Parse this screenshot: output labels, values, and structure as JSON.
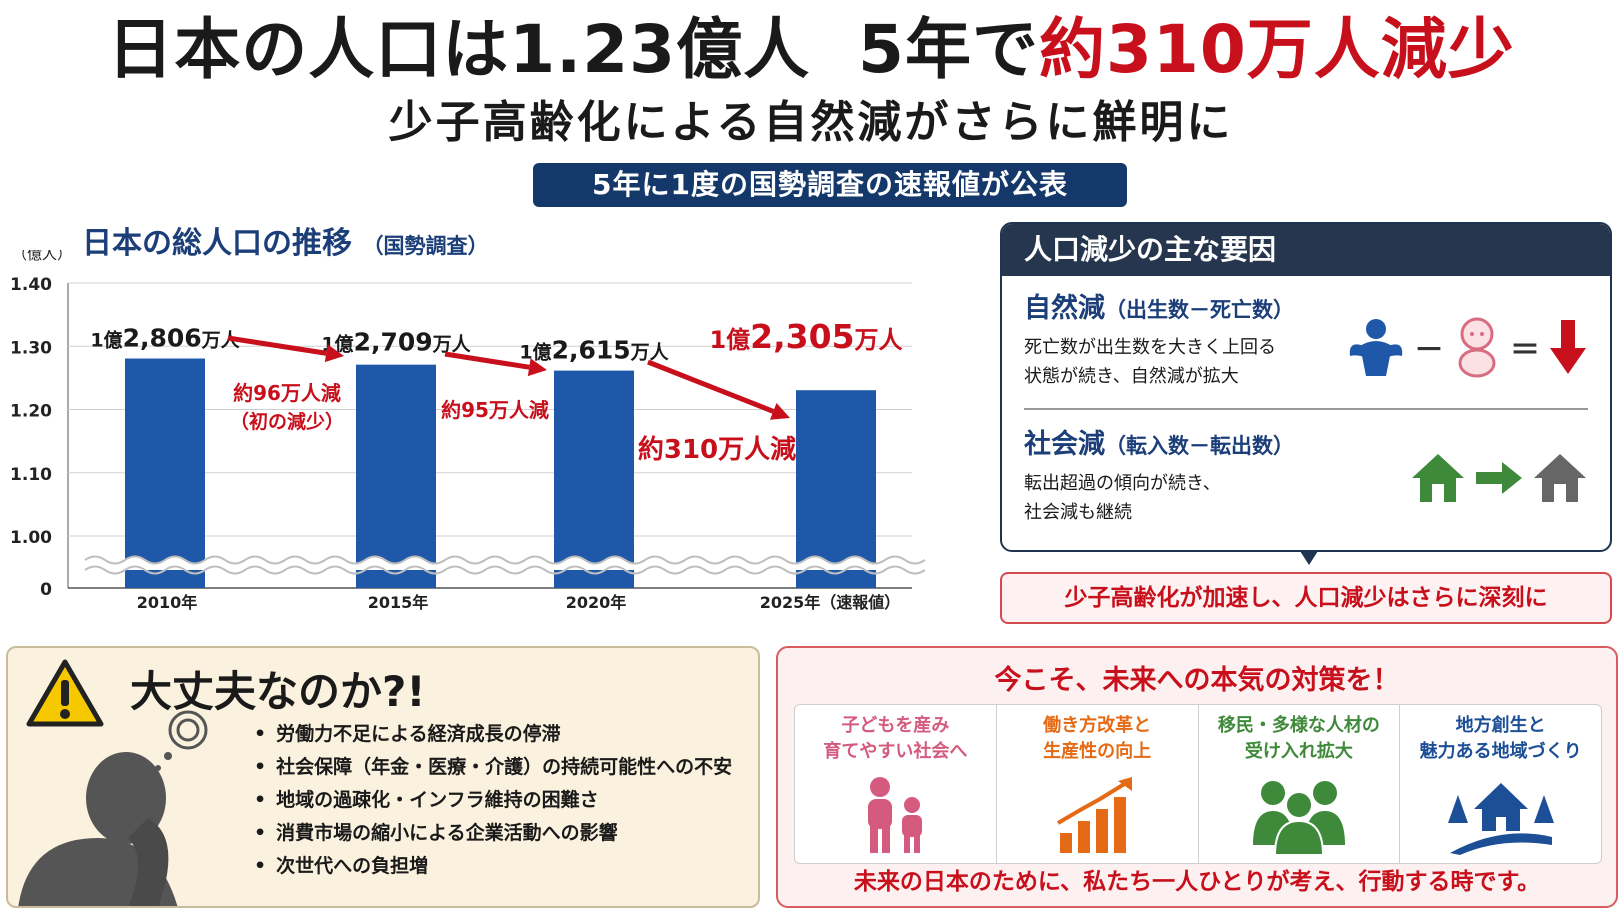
{
  "headline": {
    "part1": "日本の人口は1.23億人",
    "part2": "5年で",
    "part3": "約310万人減少",
    "subtitle": "少子高齢化による自然減がさらに鮮明に",
    "banner": "5年に1度の国勢調査の速報値が公表"
  },
  "chart": {
    "title": "日本の総人口の推移",
    "title_note": "（国勢調査）"
  },
  "chart_data": {
    "type": "bar",
    "y_unit_label": "（億人）",
    "ylim": [
      1.0,
      1.4
    ],
    "y_ticks": [
      "1.40",
      "1.30",
      "1.20",
      "1.10",
      "1.00",
      "0"
    ],
    "y_tick_values": [
      1.4,
      1.3,
      1.2,
      1.1,
      1.0,
      0
    ],
    "categories": [
      "2010年",
      "2015年",
      "2020年",
      "2025年（速報値）"
    ],
    "values": [
      1.2806,
      1.2709,
      1.2615,
      1.2305
    ],
    "data_labels": [
      "1億2,806万人",
      "1億2,709万人",
      "1億2,615万人",
      "1億2,305万人"
    ],
    "data_label_parts": [
      {
        "a": "1億",
        "b": "2,806",
        "c": "万人"
      },
      {
        "a": "1億",
        "b": "2,709",
        "c": "万人"
      },
      {
        "a": "1億",
        "b": "2,615",
        "c": "万人"
      },
      {
        "a": "1億",
        "b": "2,305",
        "c": "万人"
      }
    ],
    "changes": [
      {
        "from": 0,
        "to": 1,
        "line1": "約96万人減",
        "line2": "（初の減少）"
      },
      {
        "from": 1,
        "to": 2,
        "line1": "約95万人減",
        "line2": ""
      },
      {
        "from": 2,
        "to": 3,
        "line1": "約310万人減",
        "line2": ""
      }
    ],
    "axis_break": true,
    "bar_color": "#1f58a8",
    "highlight_color": "#c8101c"
  },
  "causes": {
    "header": "人口減少の主な要因",
    "natural": {
      "title": "自然減",
      "formula": "（出生数－死亡数）",
      "line1": "死亡数が出生数を大きく上回る",
      "line2": "状態が続き、自然減が拡大",
      "icons": [
        "angel-icon",
        "baby-icon",
        "down-arrow-icon"
      ]
    },
    "social": {
      "title": "社会減",
      "formula": "（転入数－転出数）",
      "line1": "転出超過の傾向が続き、",
      "line2": "社会減も継続",
      "icons": [
        "green-house-icon",
        "right-arrow-icon",
        "gray-house-icon"
      ]
    },
    "minus": "－",
    "equals": "＝",
    "conclusion": "少子高齢化が加速し、人口減少はさらに深刻に"
  },
  "concerns": {
    "title": "大丈夫なのか?!",
    "items": [
      "労働力不足による経済成長の停滞",
      "社会保障（年金・医療・介護）の持続可能性への不安",
      "地域の過疎化・インフラ維持の困難さ",
      "消費市場の縮小による企業活動への影響",
      "次世代への負担増"
    ]
  },
  "actions": {
    "title": "今こそ、未来への本気の対策を！",
    "items": [
      {
        "text": "子どもを産み\n育てやすい社会へ",
        "color": "#d45b7f",
        "icon": "parent-child-icon"
      },
      {
        "text": "働き方改革と\n生産性の向上",
        "color": "#e56a16",
        "icon": "growth-chart-icon"
      },
      {
        "text": "移民・多様な人材の\n受け入れ拡大",
        "color": "#3f8a3a",
        "icon": "group-icon"
      },
      {
        "text": "地方創生と\n魅力ある地域づくり",
        "color": "#1c4f95",
        "icon": "town-icon"
      }
    ],
    "footer": "未来の日本のために、私たち一人ひとりが考え、行動する時です。"
  }
}
